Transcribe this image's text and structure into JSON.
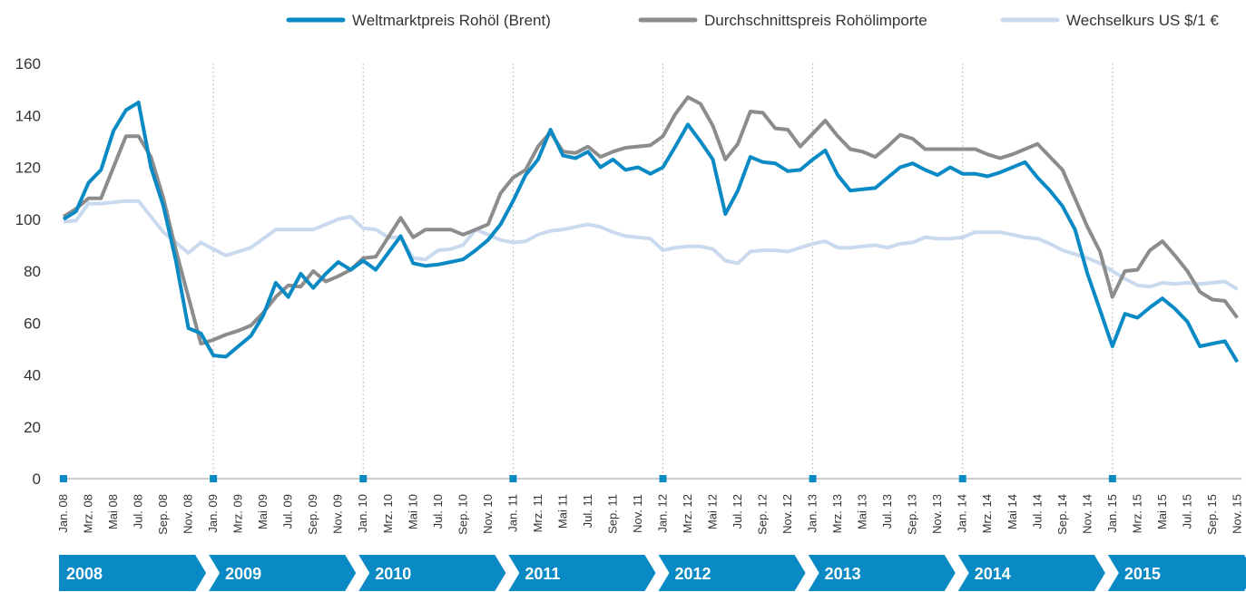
{
  "chart_data": {
    "type": "line",
    "categories": [
      "Jan. 08",
      null,
      "Mrz. 08",
      null,
      "Mai 08",
      null,
      "Jul. 08",
      null,
      "Sep. 08",
      null,
      "Nov. 08",
      null,
      "Jan. 09",
      null,
      "Mrz. 09",
      null,
      "Mai 09",
      null,
      "Jul. 09",
      null,
      "Sep. 09",
      null,
      "Nov. 09",
      null,
      "Jan. 10",
      null,
      "Mrz. 10",
      null,
      "Mai 10",
      null,
      "Jul. 10",
      null,
      "Sep. 10",
      null,
      "Nov. 10",
      null,
      "Jan. 11",
      null,
      "Mrz. 11",
      null,
      "Mai 11",
      null,
      "Jul. 11",
      null,
      "Sep. 11",
      null,
      "Nov. 11",
      null,
      "Jan. 12",
      null,
      "Mrz. 12",
      null,
      "Mai 12",
      null,
      "Jul. 12",
      null,
      "Sep. 12",
      null,
      "Nov. 12",
      null,
      "Jan. 13",
      null,
      "Mrz. 13",
      null,
      "Mai 13",
      null,
      "Jul. 13",
      null,
      "Sep. 13",
      null,
      "Nov. 13",
      null,
      "Jan. 14",
      null,
      "Mrz. 14",
      null,
      "Mai 14",
      null,
      "Jul. 14",
      null,
      "Sep. 14",
      null,
      "Nov. 14",
      null,
      "Jan. 15",
      null,
      "Mrz. 15",
      null,
      "Mai 15",
      null,
      "Jul. 15",
      null,
      "Sep. 15",
      null,
      "Nov. 15"
    ],
    "years": [
      "2008",
      "2009",
      "2010",
      "2011",
      "2012",
      "2013",
      "2014",
      "2015"
    ],
    "series": [
      {
        "name": "Weltmarktpreis Rohöl (Brent)",
        "color": "#0a8ac4",
        "values": [
          100,
          103,
          114,
          119,
          134,
          142,
          145,
          120,
          105,
          84,
          58,
          56,
          47.5,
          47,
          51,
          55,
          63,
          75.5,
          70,
          79,
          73.5,
          79,
          83.5,
          80.5,
          84,
          80.5,
          87,
          93.5,
          83,
          82,
          82.5,
          83.5,
          84.5,
          88,
          92,
          98,
          107,
          117,
          123,
          134.5,
          124.5,
          123.5,
          126,
          120,
          123,
          119,
          120,
          117.5,
          120,
          128,
          136.5,
          130,
          123,
          102,
          111,
          124,
          122,
          121.5,
          118.5,
          119,
          123,
          126.5,
          117,
          111,
          111.5,
          112,
          116,
          120,
          121.5,
          119,
          117,
          120,
          117.5,
          117.5,
          116.5,
          118,
          120,
          122,
          116,
          111,
          105,
          96,
          79,
          65,
          51,
          63.5,
          62,
          66,
          69.5,
          65.5,
          60.5,
          51,
          52,
          53,
          45
        ]
      },
      {
        "name": "Durchschnittspreis Rohölimporte",
        "color": "#8c8c8c",
        "values": [
          101,
          104,
          108,
          108,
          120,
          132,
          132,
          124,
          108,
          88,
          70,
          52,
          53.5,
          55.5,
          57,
          59,
          64,
          70,
          74.5,
          74,
          80,
          76,
          78,
          80.5,
          85,
          85.5,
          93,
          100.5,
          93,
          96,
          96,
          96,
          94,
          96,
          98,
          110,
          116,
          119,
          128,
          133.5,
          126,
          125.5,
          128,
          124,
          126,
          127.5,
          128,
          128.5,
          132,
          140.5,
          147,
          144.5,
          136,
          123,
          129,
          141.5,
          141,
          135,
          134.5,
          128,
          133,
          138,
          132,
          127,
          126,
          124,
          128,
          132.5,
          131,
          127,
          127,
          127,
          127,
          127,
          125,
          123.5,
          125,
          127,
          129,
          124,
          119,
          108,
          97,
          87.5,
          70,
          80,
          80.5,
          88,
          91.5,
          86,
          80,
          72,
          69,
          68.5,
          62
        ]
      },
      {
        "name": "Wechselkurs US $/1 €",
        "color": "#c9d9ee",
        "values": [
          99,
          99.5,
          106,
          106,
          106.5,
          107,
          107,
          101,
          95,
          91,
          87,
          91,
          88.5,
          86,
          87.5,
          89,
          92.5,
          96,
          96,
          96,
          96,
          98,
          100,
          101,
          96.5,
          96,
          93,
          93,
          85,
          84.5,
          88,
          88.5,
          90,
          96,
          94,
          92,
          91,
          91.5,
          94,
          95.5,
          96,
          97,
          98,
          97,
          95,
          93.5,
          93,
          92.5,
          88,
          89,
          89.5,
          89.5,
          88.5,
          84,
          83,
          87.5,
          88,
          88,
          87.5,
          89,
          90.5,
          91.5,
          89,
          89,
          89.5,
          90,
          89,
          90.5,
          91,
          93,
          92.5,
          92.5,
          93,
          95,
          95,
          95,
          94,
          93,
          92.5,
          90.5,
          88,
          86.5,
          85,
          83,
          80,
          77,
          74.5,
          74,
          75.5,
          75,
          75.5,
          75,
          75.5,
          76,
          73
        ]
      }
    ],
    "ylim": [
      0,
      160
    ],
    "yticks": [
      0,
      20,
      40,
      60,
      80,
      100,
      120,
      140,
      160
    ],
    "grid": false,
    "legend": "top-right"
  }
}
